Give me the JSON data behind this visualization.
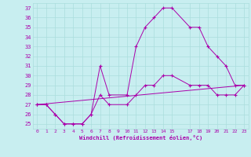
{
  "bg_color": "#c8eef0",
  "grid_color": "#aadddd",
  "line_color": "#aa00aa",
  "line1_x": [
    0,
    1,
    2,
    3,
    4,
    5,
    6,
    7,
    8,
    10,
    11,
    12,
    13,
    14,
    15,
    17,
    18,
    19,
    20,
    21,
    22,
    23
  ],
  "line1_y": [
    27,
    27,
    26,
    25,
    25,
    25,
    26,
    31,
    28,
    28,
    33,
    35,
    36,
    37,
    37,
    35,
    35,
    33,
    32,
    31,
    29,
    29
  ],
  "line2_x": [
    0,
    1,
    2,
    3,
    4,
    5,
    6,
    7,
    8,
    10,
    11,
    12,
    13,
    14,
    15,
    17,
    18,
    19,
    20,
    21,
    22,
    23
  ],
  "line2_y": [
    27,
    27,
    26,
    25,
    25,
    25,
    26,
    28,
    27,
    27,
    28,
    29,
    29,
    30,
    30,
    29,
    29,
    29,
    28,
    28,
    28,
    29
  ],
  "line3_x": [
    0,
    23
  ],
  "line3_y": [
    27,
    29
  ],
  "xlabel": "Windchill (Refroidissement éolien,°C)",
  "xlim": [
    -0.5,
    23.5
  ],
  "ylim": [
    24.5,
    37.5
  ],
  "xticks": [
    0,
    1,
    2,
    3,
    4,
    5,
    6,
    7,
    8,
    9,
    10,
    11,
    12,
    13,
    14,
    15,
    17,
    18,
    19,
    20,
    21,
    22,
    23
  ],
  "yticks": [
    25,
    26,
    27,
    28,
    29,
    30,
    31,
    32,
    33,
    34,
    35,
    36,
    37
  ]
}
